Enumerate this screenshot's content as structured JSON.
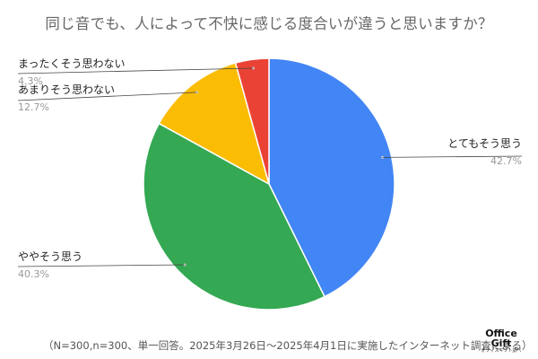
{
  "chart_data": {
    "type": "pie",
    "title": "同じ音でも、人によって不快に感じる度合いが違うと思いますか？",
    "start_angle_deg": 0,
    "direction": "clockwise",
    "slices": [
      {
        "label": "とてもそう思う",
        "value": 42.7,
        "value_label": "42.7%",
        "color": "#4285F4",
        "label_side": "right"
      },
      {
        "label": "ややそう思う",
        "value": 40.3,
        "value_label": "40.3%",
        "color": "#34A853",
        "label_side": "left"
      },
      {
        "label": "あまりそう思わない",
        "value": 12.7,
        "value_label": "12.7%",
        "color": "#FBBC04",
        "label_side": "left"
      },
      {
        "label": "まったくそう思わない",
        "value": 4.3,
        "value_label": "4.3%",
        "color": "#EA4335",
        "label_side": "left"
      }
    ],
    "legend": "none"
  },
  "footnote": "（N=300,n=300、単一回答。2025年3月26日〜2025年4月1日に実施したインターネット調査による）",
  "logo": {
    "line1": "Office",
    "line2": "Gift",
    "line3": "オフィスギフト調べ"
  }
}
